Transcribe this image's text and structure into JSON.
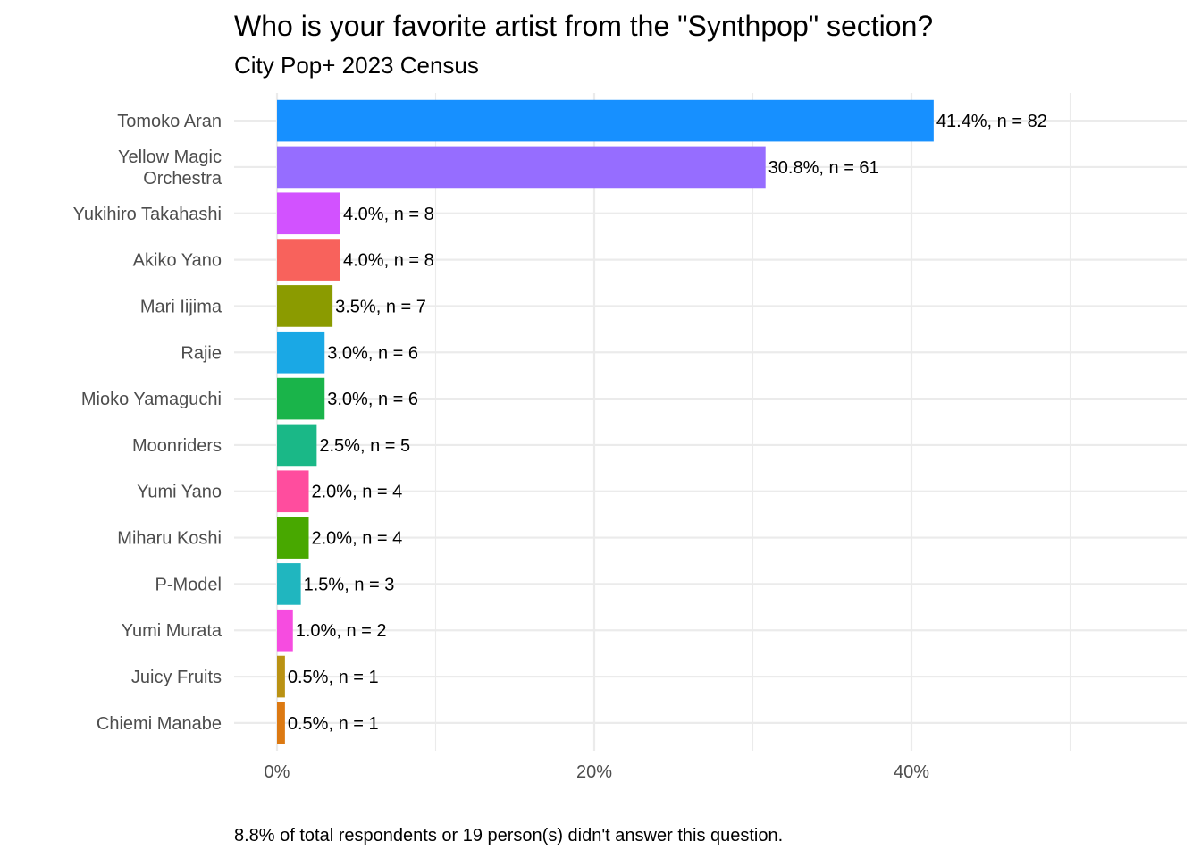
{
  "chart_data": {
    "type": "bar",
    "orientation": "horizontal",
    "title": "Who is your favorite artist from the \"Synthpop\" section?",
    "subtitle": "City Pop+ 2023 Census",
    "caption": "8.8% of total respondents or 19 person(s) didn't answer this question.",
    "categories": [
      [
        "Tomoko Aran"
      ],
      [
        "Yellow Magic",
        "Orchestra"
      ],
      [
        "Yukihiro Takahashi"
      ],
      [
        "Akiko Yano"
      ],
      [
        "Mari Iijima"
      ],
      [
        "Rajie"
      ],
      [
        "Mioko Yamaguchi"
      ],
      [
        "Moonriders"
      ],
      [
        "Yumi Yano"
      ],
      [
        "Miharu Koshi"
      ],
      [
        "P-Model"
      ],
      [
        "Yumi Murata"
      ],
      [
        "Juicy Fruits"
      ],
      [
        "Chiemi Manabe"
      ]
    ],
    "values": [
      41.4,
      30.8,
      4.0,
      4.0,
      3.5,
      3.0,
      3.0,
      2.5,
      2.0,
      2.0,
      1.5,
      1.0,
      0.5,
      0.5
    ],
    "labels": [
      "41.4%, n = 82",
      "30.8%, n = 61",
      "4.0%, n = 8",
      "4.0%, n = 8",
      "3.5%, n = 7",
      "3.0%, n = 6",
      "3.0%, n = 6",
      "2.5%, n = 5",
      "2.0%, n = 4",
      "2.0%, n = 4",
      "1.5%, n = 3",
      "1.0%, n = 2",
      "0.5%, n = 1",
      "0.5%, n = 1"
    ],
    "colors": [
      "#1790ff",
      "#966dff",
      "#d252ff",
      "#f8625c",
      "#8b9b00",
      "#1aa8e5",
      "#1ab44a",
      "#1ab887",
      "#ff4d9e",
      "#48a800",
      "#20b6bf",
      "#f64ce0",
      "#ba9213",
      "#dc7912"
    ],
    "xlim": [
      0,
      57.5
    ],
    "xticks": [
      0,
      20,
      40
    ],
    "xtick_labels": [
      "0%",
      "20%",
      "40%"
    ],
    "minor_xticks": [
      10,
      30,
      50
    ],
    "grid": true
  }
}
